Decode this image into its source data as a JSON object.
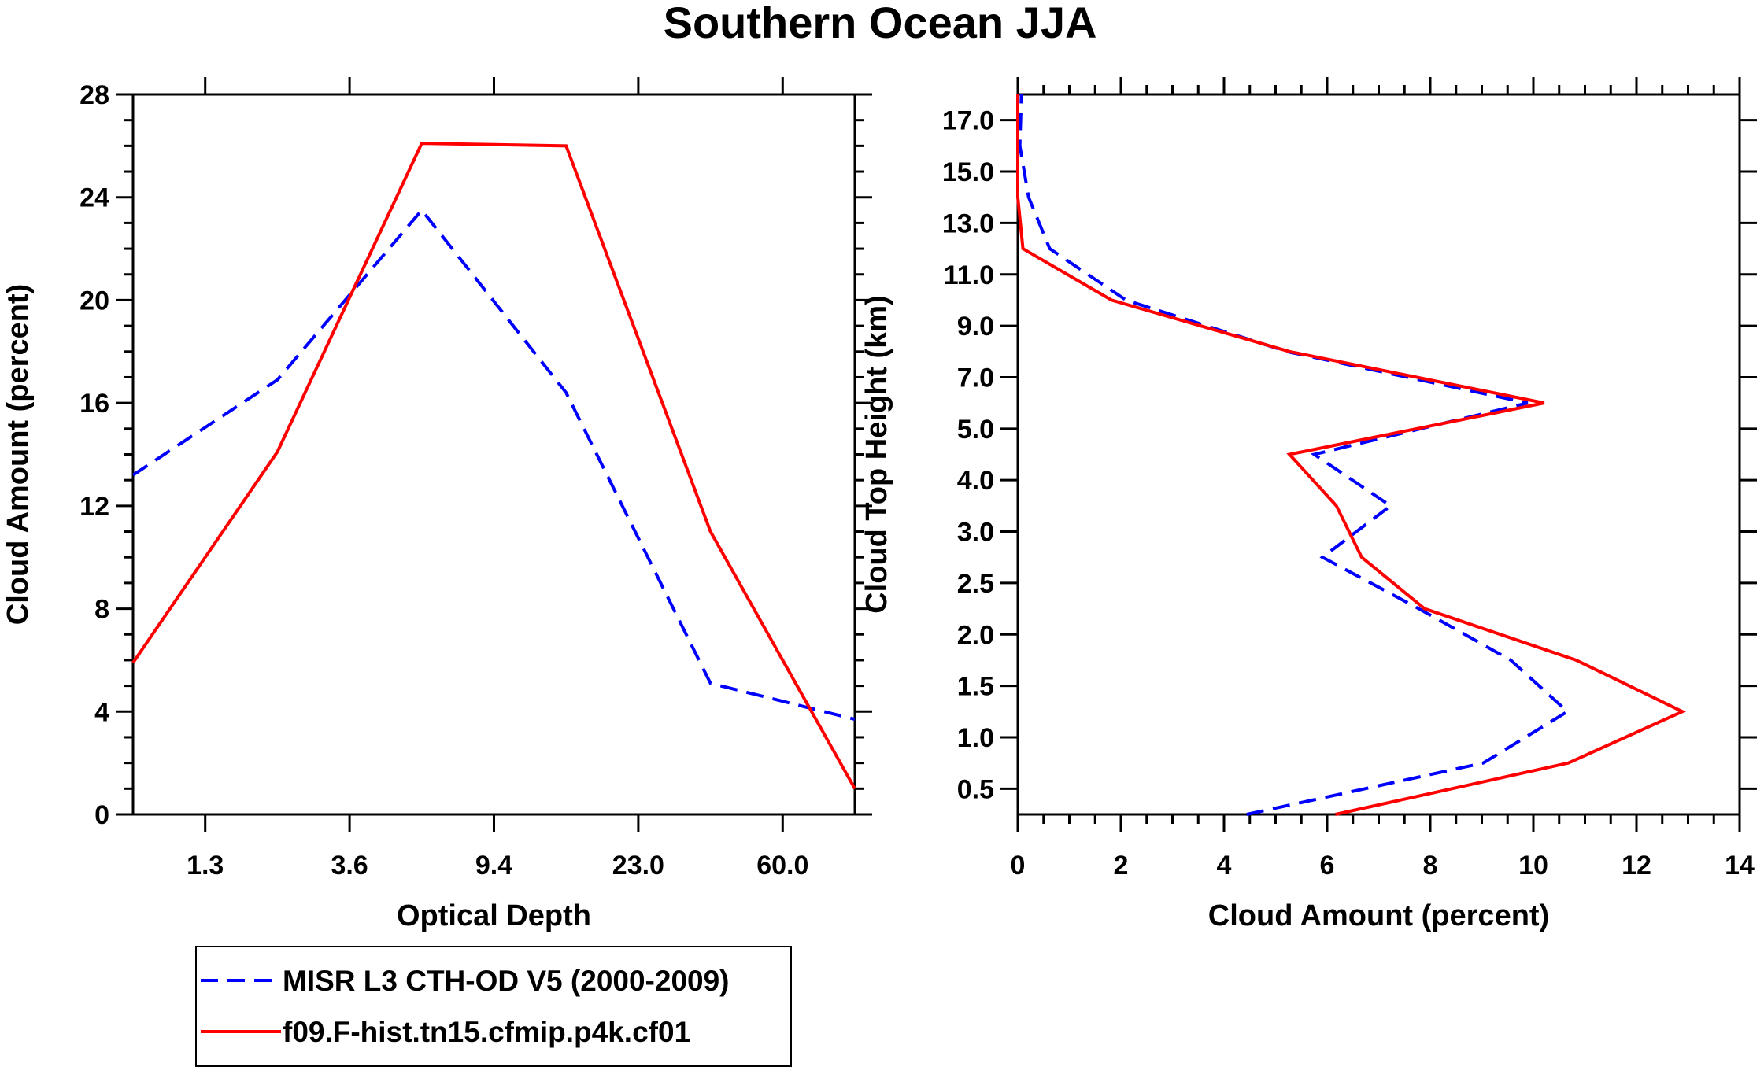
{
  "title": "Southern Ocean JJA",
  "legend": {
    "placement": "bottom-left",
    "entries": [
      {
        "label": "MISR L3 CTH-OD V5 (2000-2009)",
        "color": "#0000ff",
        "dash": true
      },
      {
        "label": "f09.F-hist.tn15.cfmip.p4k.cf01",
        "color": "#ff0000",
        "dash": false
      }
    ]
  },
  "chart_data": [
    {
      "type": "line",
      "xlabel": "Optical Depth",
      "ylabel": "Cloud Amount (percent)",
      "ylim": [
        0,
        28
      ],
      "yticks": [
        "0",
        "4",
        "8",
        "12",
        "16",
        "20",
        "24",
        "28"
      ],
      "xtick_labels": [
        "1.3",
        "3.6",
        "9.4",
        "23.0",
        "60.0"
      ],
      "x_bins": 5,
      "series": [
        {
          "name": "MISR L3 CTH-OD V5 (2000-2009)",
          "color": "#0000ff",
          "values": [
            13.2,
            16.9,
            23.5,
            16.4,
            5.1,
            3.7
          ]
        },
        {
          "name": "f09.F-hist.tn15.cfmip.p4k.cf01",
          "color": "#ff0000",
          "values": [
            5.9,
            14.1,
            26.1,
            26.0,
            11.0,
            1.0
          ]
        }
      ]
    },
    {
      "type": "line",
      "xlabel": "Cloud Amount (percent)",
      "ylabel": "Cloud Top Height (km)",
      "xlim": [
        0,
        14
      ],
      "xticks": [
        "0",
        "2",
        "4",
        "6",
        "8",
        "10",
        "12",
        "14"
      ],
      "ytick_labels": [
        "0.5",
        "1.0",
        "1.5",
        "2.0",
        "2.5",
        "3.0",
        "4.0",
        "5.0",
        "7.0",
        "9.0",
        "11.0",
        "13.0",
        "15.0",
        "17.0"
      ],
      "y_bins": 14,
      "series": [
        {
          "name": "MISR L3 CTH-OD V5 (2000-2009)",
          "color": "#0000ff",
          "values": [
            4.44,
            9.03,
            10.66,
            9.56,
            7.78,
            5.91,
            7.23,
            5.75,
            9.89,
            5.22,
            2.1,
            0.62,
            0.21,
            0.04,
            0.07
          ]
        },
        {
          "name": "f09.F-hist.tn15.cfmip.p4k.cf01",
          "color": "#ff0000",
          "values": [
            6.16,
            10.68,
            12.89,
            10.83,
            7.89,
            6.67,
            6.18,
            5.27,
            10.21,
            5.27,
            1.82,
            0.1,
            0,
            0,
            0
          ]
        }
      ]
    }
  ]
}
